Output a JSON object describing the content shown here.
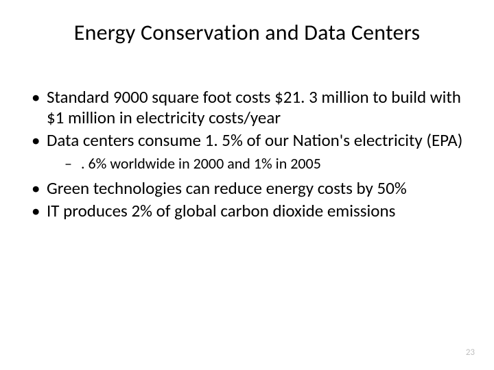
{
  "slide": {
    "title": "Energy Conservation and Data Centers",
    "bullets": [
      {
        "text": "Standard 9000 square foot costs $21. 3 million to build with $1 million in electricity costs/year"
      },
      {
        "text": "Data centers consume 1. 5% of our Nation's electricity (EPA)",
        "sub": [
          ". 6% worldwide in 2000 and 1% in 2005"
        ]
      },
      {
        "text": "Green technologies can reduce energy costs by 50%"
      },
      {
        "text": "IT produces 2% of global carbon dioxide emissions"
      }
    ],
    "pageNumber": "23"
  },
  "style": {
    "background_color": "#ffffff",
    "text_color": "#000000",
    "page_number_color": "#bfbfbf",
    "title_fontsize": 32,
    "bullet_fontsize": 25,
    "sub_bullet_fontsize": 22,
    "page_number_fontsize": 13,
    "font_family": "Calibri"
  }
}
